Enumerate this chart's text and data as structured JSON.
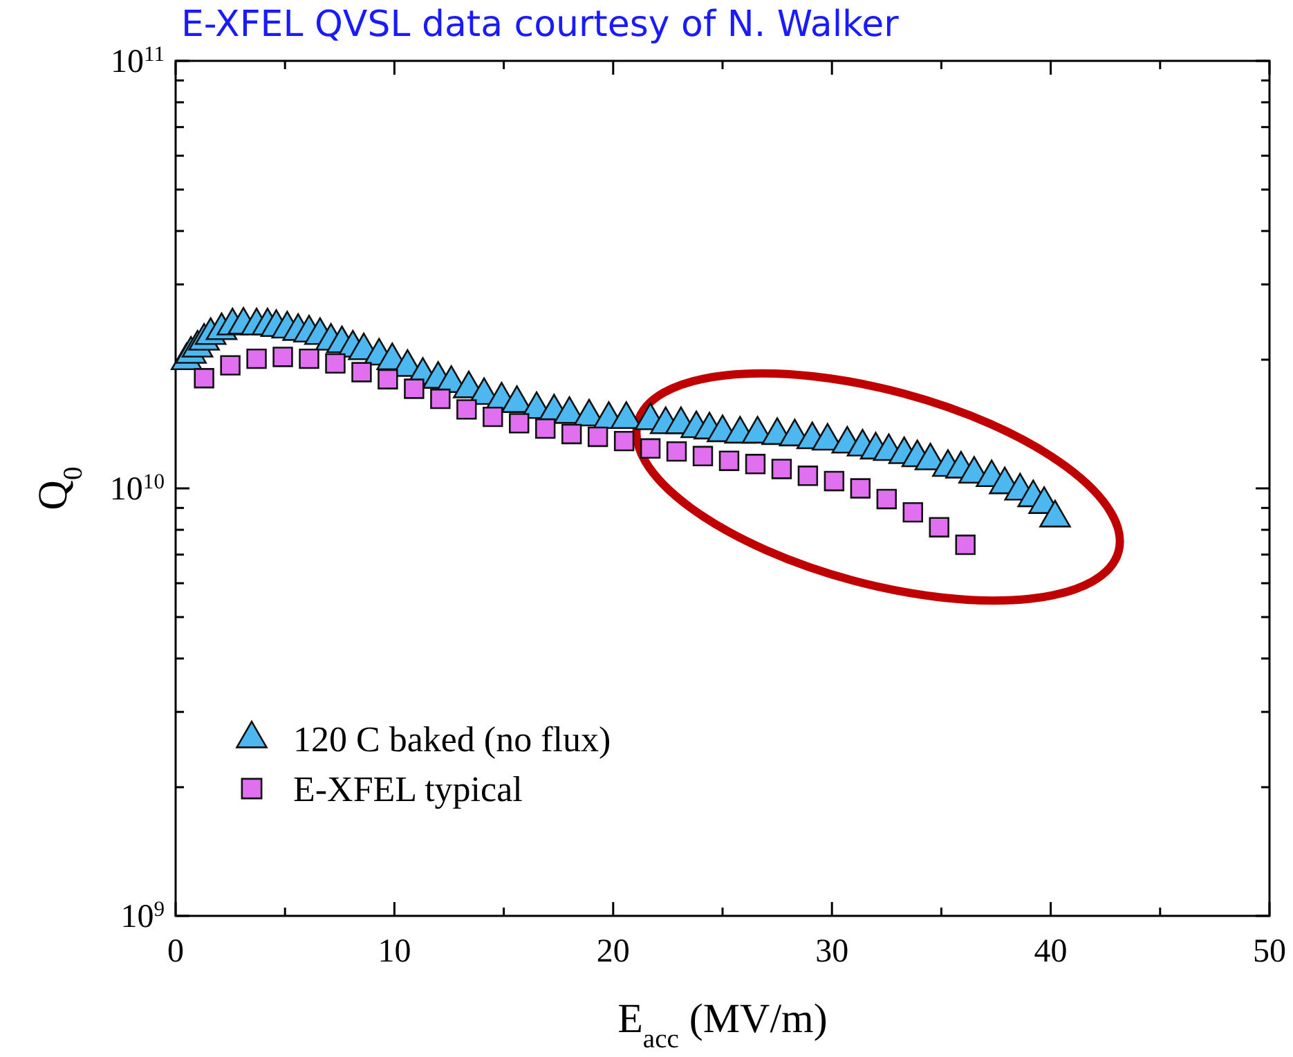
{
  "chart_data": {
    "type": "scatter",
    "title": "E-XFEL QVSL data courtesy of N. Walker",
    "xlabel": "E$_{acc}$ (MV/m)",
    "ylabel": "Q$_{0}$",
    "log": "y",
    "xlim": [
      0,
      50
    ],
    "xticks": [
      0,
      {
        "value": 5,
        "label": null
      },
      10,
      {
        "value": 15,
        "label": null
      },
      20,
      {
        "value": 25,
        "label": null
      },
      30,
      {
        "value": 35,
        "label": null
      },
      40,
      {
        "value": 45,
        "label": null
      },
      50
    ],
    "ylim": [
      1000000000.0,
      100000000000.0
    ],
    "yticks": [
      {
        "value": 1000000000.0,
        "label": "10$^{9}$"
      },
      {
        "value": 2000000000.0,
        "label": null
      },
      {
        "value": 3000000000.0,
        "label": null
      },
      {
        "value": 4000000000.0,
        "label": null
      },
      {
        "value": 5000000000.0,
        "label": null
      },
      {
        "value": 6000000000.0,
        "label": null
      },
      {
        "value": 7000000000.0,
        "label": null
      },
      {
        "value": 8000000000.0,
        "label": null
      },
      {
        "value": 9000000000.0,
        "label": null
      },
      {
        "value": 10000000000.0,
        "label": "10$^{10}$"
      },
      {
        "value": 20000000000.0,
        "label": null
      },
      {
        "value": 30000000000.0,
        "label": null
      },
      {
        "value": 40000000000.0,
        "label": null
      },
      {
        "value": 50000000000.0,
        "label": null
      },
      {
        "value": 60000000000.0,
        "label": null
      },
      {
        "value": 70000000000.0,
        "label": null
      },
      {
        "value": 80000000000.0,
        "label": null
      },
      {
        "value": 90000000000.0,
        "label": null
      },
      {
        "value": 100000000000.0,
        "label": "10$^{11}$"
      }
    ],
    "grid": false,
    "legend": "bottom left",
    "series": [
      {
        "name": "120 C baked (no flux)",
        "color": "#4db8f0",
        "marker": "triangle",
        "x": [
          0.5,
          0.7,
          1.0,
          1.3,
          1.6,
          2.1,
          2.6,
          3.1,
          3.7,
          4.2,
          4.6,
          5.1,
          5.6,
          6.1,
          6.6,
          7.1,
          7.6,
          8.1,
          8.6,
          9.3,
          9.9,
          10.6,
          11.3,
          12.0,
          12.6,
          13.4,
          14.1,
          14.9,
          15.6,
          16.5,
          17.3,
          18.0,
          18.9,
          19.8,
          20.6,
          21.7,
          22.4,
          23.1,
          23.8,
          24.4,
          25.0,
          25.8,
          26.6,
          27.5,
          28.3,
          29.1,
          29.8,
          30.7,
          31.4,
          32.0,
          32.6,
          33.3,
          33.9,
          34.5,
          35.3,
          35.9,
          36.5,
          37.3,
          37.9,
          38.6,
          39.2,
          39.7,
          40.2
        ],
        "values": [
          19900000000.0,
          20600000000.0,
          21300000000.0,
          22100000000.0,
          22800000000.0,
          23400000000.0,
          24000000000.0,
          24100000000.0,
          24000000000.0,
          24000000000.0,
          23800000000.0,
          23600000000.0,
          23300000000.0,
          23100000000.0,
          22800000000.0,
          22100000000.0,
          21800000000.0,
          21300000000.0,
          21000000000.0,
          20400000000.0,
          19900000000.0,
          19200000000.0,
          18400000000.0,
          18000000000.0,
          17600000000.0,
          17100000000.0,
          16500000000.0,
          16100000000.0,
          15800000000.0,
          15300000000.0,
          15100000000.0,
          14900000000.0,
          14700000000.0,
          14500000000.0,
          14500000000.0,
          14400000000.0,
          14100000000.0,
          14100000000.0,
          13800000000.0,
          13700000000.0,
          13500000000.0,
          13400000000.0,
          13400000000.0,
          13300000000.0,
          13200000000.0,
          13000000000.0,
          12900000000.0,
          12700000000.0,
          12500000000.0,
          12300000000.0,
          12200000000.0,
          12000000000.0,
          11800000000.0,
          11600000000.0,
          11200000000.0,
          11100000000.0,
          10800000000.0,
          10600000000.0,
          10200000000.0,
          9860000000.0,
          9510000000.0,
          9170000000.0,
          8530000000.0
        ]
      },
      {
        "name": "E-XFEL typical",
        "color": "#e070f0",
        "marker": "square",
        "x": [
          1.3,
          2.5,
          3.7,
          4.9,
          6.1,
          7.3,
          8.5,
          9.7,
          10.9,
          12.1,
          13.3,
          14.5,
          15.7,
          16.9,
          18.1,
          19.3,
          20.5,
          21.7,
          22.9,
          24.1,
          25.3,
          26.5,
          27.7,
          28.9,
          30.1,
          31.3,
          32.5,
          33.7,
          34.9,
          36.1
        ],
        "values": [
          18100000000.0,
          19400000000.0,
          20100000000.0,
          20300000000.0,
          20100000000.0,
          19600000000.0,
          18700000000.0,
          18000000000.0,
          17100000000.0,
          16200000000.0,
          15300000000.0,
          14700000000.0,
          14200000000.0,
          13800000000.0,
          13400000000.0,
          13200000000.0,
          12900000000.0,
          12400000000.0,
          12200000000.0,
          11900000000.0,
          11600000000.0,
          11400000000.0,
          11100000000.0,
          10700000000.0,
          10400000000.0,
          10000000000.0,
          9440000000.0,
          8790000000.0,
          8110000000.0,
          7380000000.0
        ]
      }
    ]
  }
}
